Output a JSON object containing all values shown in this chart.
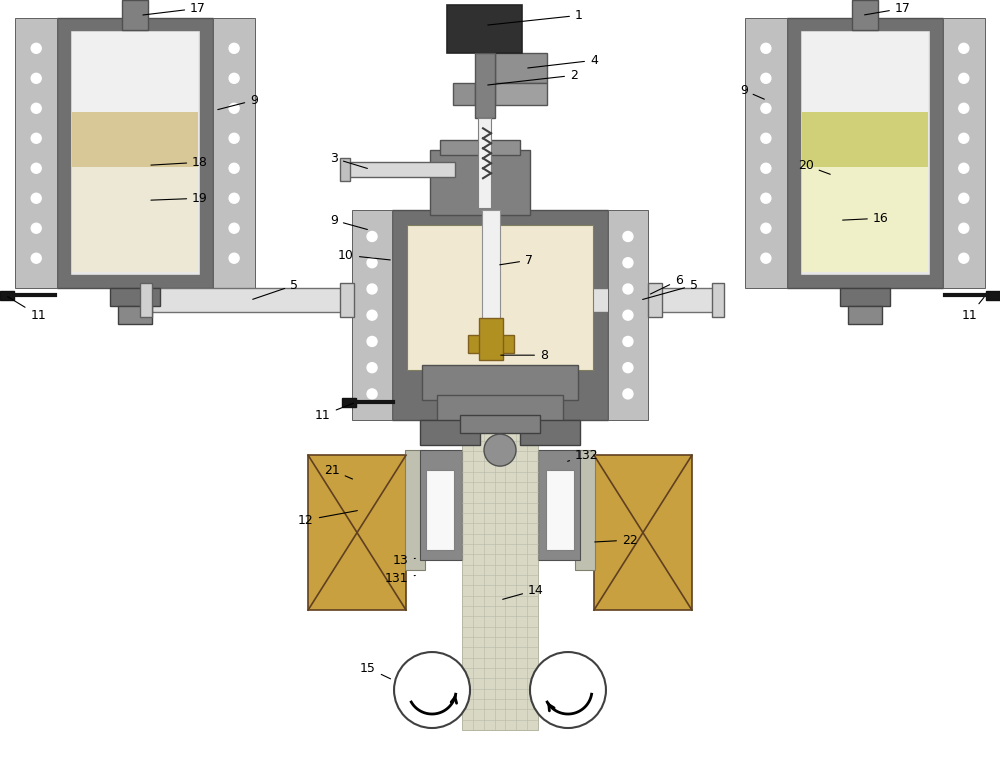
{
  "bg": "#ffffff",
  "g_dark": "#686868",
  "g_med": "#888888",
  "g_light": "#aaaaaa",
  "g_pale": "#c8c8c8",
  "dot_bg": "#c0c0c0",
  "cream_light": "#f5f0e0",
  "cream_mid": "#e8dfc0",
  "cream_dark": "#d8c890",
  "yell_light": "#f0f0c8",
  "yell_mid": "#e0e0a0",
  "yell_dark": "#c8c878",
  "bronze": "#a07820",
  "tan_box": "#c8a040",
  "cast_col": "#d8d8c8",
  "white_tube": "#e8e8e8",
  "black": "#101010",
  "motor_dark": "#303030",
  "spring_col": "#404040",
  "roller_col": "#909090"
}
